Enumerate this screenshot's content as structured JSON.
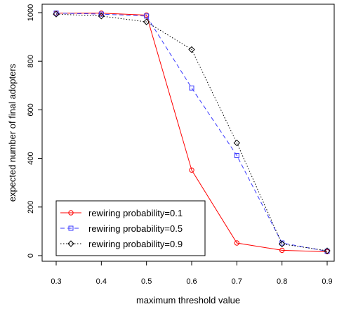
{
  "chart_data": {
    "type": "line",
    "title": "",
    "xlabel": "maximum threshold value",
    "ylabel": "expected number of final adopters",
    "x": [
      0.3,
      0.4,
      0.5,
      0.6,
      0.7,
      0.8,
      0.9
    ],
    "x_ticks": [
      "0.3",
      "0.4",
      "0.5",
      "0.6",
      "0.7",
      "0.8",
      "0.9"
    ],
    "y_ticks": [
      "0",
      "200",
      "400",
      "600",
      "800",
      "1000"
    ],
    "xlim": [
      0.3,
      0.9
    ],
    "ylim": [
      0,
      1000
    ],
    "grid": false,
    "legend_position": "bottom-left",
    "series": [
      {
        "name": "rewiring probability=0.1",
        "values": [
          998,
          998,
          990,
          352,
          52,
          22,
          16
        ],
        "color": "#ff0000",
        "marker": "circle",
        "line_style": "solid"
      },
      {
        "name": "rewiring probability=0.5",
        "values": [
          998,
          994,
          986,
          690,
          412,
          52,
          18
        ],
        "color": "#3a3aff",
        "marker": "square",
        "line_style": "dashed"
      },
      {
        "name": "rewiring probability=0.9",
        "values": [
          994,
          986,
          962,
          848,
          464,
          48,
          20
        ],
        "color": "#000000",
        "marker": "diamond",
        "line_style": "dotted"
      }
    ]
  }
}
